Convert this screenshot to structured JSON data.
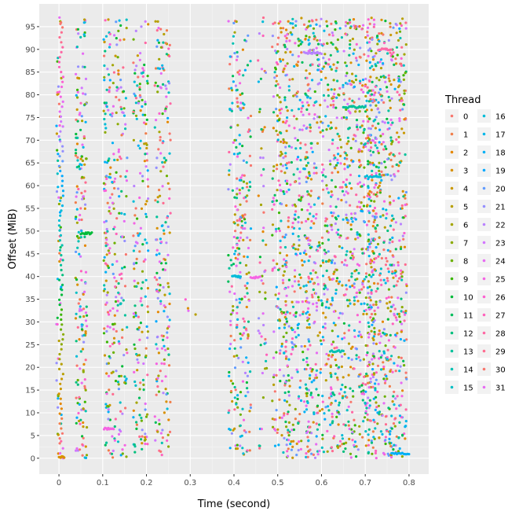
{
  "chart_data": {
    "type": "scatter",
    "title": "",
    "xlabel": "Time (second)",
    "ylabel": "Offset (MiB)",
    "xlim": [
      -0.045,
      0.845
    ],
    "ylim": [
      -3.5,
      100
    ],
    "x_ticks": [
      0,
      0.1,
      0.2,
      0.3,
      0.4,
      0.5,
      0.6,
      0.7,
      0.8
    ],
    "x_tick_labels": [
      "0",
      "0.1",
      "0.2",
      "0.3",
      "0.4",
      "0.5",
      "0.6",
      "0.7",
      "0.8"
    ],
    "y_ticks": [
      0,
      5,
      10,
      15,
      20,
      25,
      30,
      35,
      40,
      45,
      50,
      55,
      60,
      65,
      70,
      75,
      80,
      85,
      90,
      95
    ],
    "y_tick_labels": [
      "0",
      "5",
      "10",
      "15",
      "20",
      "25",
      "30",
      "35",
      "40",
      "45",
      "50",
      "55",
      "60",
      "65",
      "70",
      "75",
      "80",
      "85",
      "90",
      "95"
    ],
    "grid": true,
    "legend": {
      "title": "Thread",
      "placement": "right",
      "entries": [
        "0",
        "1",
        "2",
        "3",
        "4",
        "5",
        "6",
        "7",
        "8",
        "9",
        "10",
        "11",
        "12",
        "13",
        "14",
        "15",
        "16",
        "17",
        "18",
        "19",
        "20",
        "21",
        "22",
        "23",
        "24",
        "25",
        "26",
        "27",
        "28",
        "29",
        "30",
        "31"
      ]
    },
    "colors": [
      "#F8766D",
      "#F07E4A",
      "#E58700",
      "#D89000",
      "#C99800",
      "#B79F00",
      "#A3A500",
      "#8BAB00",
      "#6BB100",
      "#39B600",
      "#00BA38",
      "#00BD5C",
      "#00BF7D",
      "#00C19A",
      "#00C1B2",
      "#00BFC4",
      "#00BCD8",
      "#00B7E9",
      "#00B0F6",
      "#00A9FF",
      "#619CFF",
      "#9590FF",
      "#B983FF",
      "#D376FF",
      "#E76BF3",
      "#F564E3",
      "#FD61D1",
      "#FF62BC",
      "#FF67A4",
      "#FF6C90",
      "#F8766D",
      "#E76BF3"
    ],
    "bursts": [
      {
        "x": 0.0,
        "w": 0.006,
        "ylo": 0,
        "yhi": 97,
        "n": 55,
        "thread_spread": 10
      },
      {
        "x": 0.051,
        "w": 0.013,
        "ylo": 0,
        "yhi": 97,
        "n": 200
      },
      {
        "x": 0.11,
        "w": 0.008,
        "ylo": 0,
        "yhi": 97,
        "n": 120
      },
      {
        "x": 0.138,
        "w": 0.018,
        "ylo": 0,
        "yhi": 97,
        "n": 170
      },
      {
        "x": 0.187,
        "w": 0.017,
        "ylo": 0,
        "yhi": 97,
        "n": 190
      },
      {
        "x": 0.237,
        "w": 0.018,
        "ylo": 0,
        "yhi": 97,
        "n": 200
      },
      {
        "x": 0.293,
        "w": 0.025,
        "ylo": 30,
        "yhi": 36,
        "n": 4
      },
      {
        "x": 0.398,
        "w": 0.011,
        "ylo": 0,
        "yhi": 97,
        "n": 110
      },
      {
        "x": 0.422,
        "w": 0.017,
        "ylo": 0,
        "yhi": 97,
        "n": 170
      },
      {
        "x": 0.465,
        "w": 0.01,
        "ylo": 0,
        "yhi": 97,
        "n": 60
      },
      {
        "x": 0.505,
        "w": 0.018,
        "ylo": 0,
        "yhi": 97,
        "n": 210
      },
      {
        "x": 0.545,
        "w": 0.03,
        "ylo": 0,
        "yhi": 97,
        "n": 330
      },
      {
        "x": 0.595,
        "w": 0.03,
        "ylo": 0,
        "yhi": 97,
        "n": 350
      },
      {
        "x": 0.64,
        "w": 0.018,
        "ylo": 0,
        "yhi": 97,
        "n": 200
      },
      {
        "x": 0.69,
        "w": 0.035,
        "ylo": 0,
        "yhi": 97,
        "n": 450
      },
      {
        "x": 0.75,
        "w": 0.045,
        "ylo": 0,
        "yhi": 97,
        "n": 650
      }
    ],
    "runs": [
      {
        "x0": 0.0,
        "x1": 0.012,
        "y": 0.2,
        "thread": 3,
        "n": 10
      },
      {
        "x0": 0.05,
        "x1": 0.075,
        "y": 49.5,
        "thread": 10,
        "n": 12
      },
      {
        "x0": 0.103,
        "x1": 0.125,
        "y": 6.5,
        "thread": 25,
        "n": 10
      },
      {
        "x0": 0.396,
        "x1": 0.415,
        "y": 40.0,
        "thread": 16,
        "n": 10
      },
      {
        "x0": 0.438,
        "x1": 0.46,
        "y": 39.8,
        "thread": 25,
        "n": 10
      },
      {
        "x0": 0.56,
        "x1": 0.6,
        "y": 89.2,
        "thread": 22,
        "n": 14
      },
      {
        "x0": 0.65,
        "x1": 0.7,
        "y": 77.3,
        "thread": 13,
        "n": 16
      },
      {
        "x0": 0.73,
        "x1": 0.76,
        "y": 90.0,
        "thread": 28,
        "n": 12
      },
      {
        "x0": 0.76,
        "x1": 0.8,
        "y": 1.0,
        "thread": 18,
        "n": 14
      },
      {
        "x0": 0.7,
        "x1": 0.735,
        "y": 62.0,
        "thread": 16,
        "n": 10
      },
      {
        "x0": 0.62,
        "x1": 0.65,
        "y": 23.5,
        "thread": 14,
        "n": 10
      }
    ],
    "ramps": [
      {
        "x0": 0.0,
        "x1": 0.01,
        "y0": 0,
        "y1": 97,
        "n": 90
      }
    ]
  }
}
